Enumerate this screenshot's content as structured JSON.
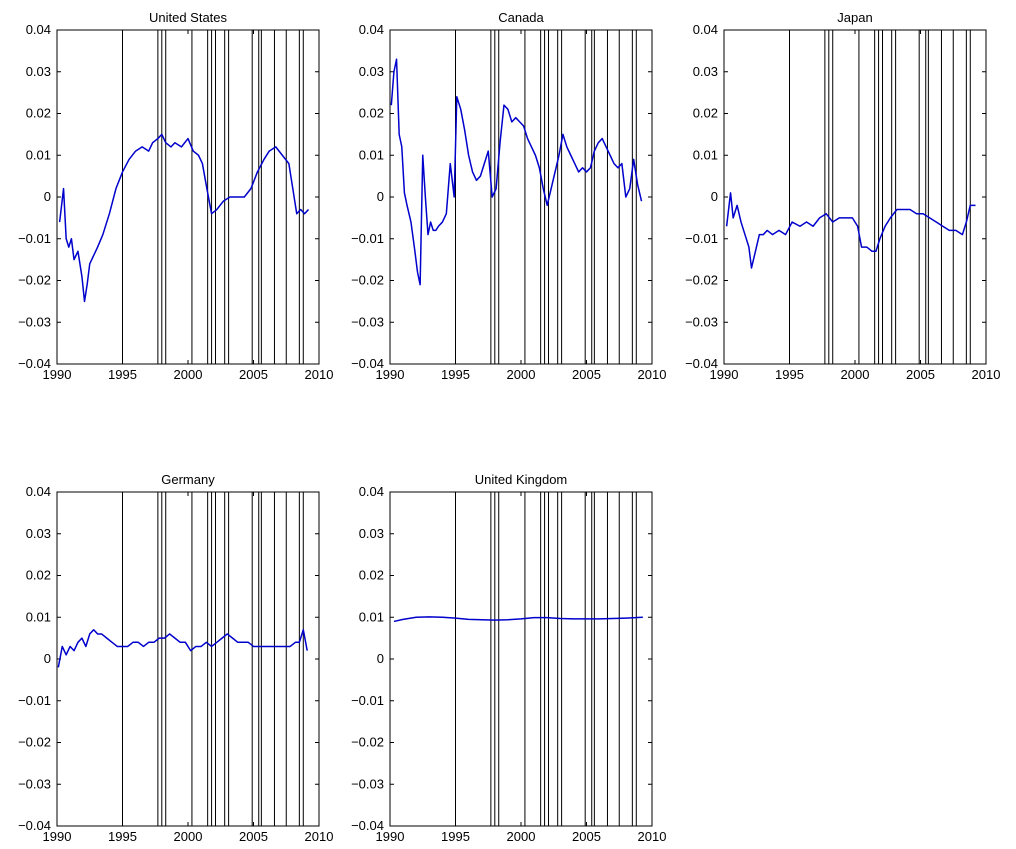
{
  "figure": {
    "event_line_color": "#000000",
    "series_color": "#0000cc",
    "axis_color": "#000000"
  },
  "chart_data": [
    {
      "type": "line",
      "title": "United States",
      "xlabel": "",
      "ylabel": "",
      "xlim": [
        1990,
        2010
      ],
      "ylim": [
        -0.04,
        0.04
      ],
      "xticks": [
        "1990",
        "1995",
        "2000",
        "2005",
        "2010"
      ],
      "yticks": [
        "−0.04",
        "−0.03",
        "−0.02",
        "−0.01",
        "0",
        "0.01",
        "0.02",
        "0.03",
        "0.04"
      ],
      "event_lines": [
        1995.0,
        1997.7,
        1998.0,
        1998.3,
        2000.3,
        2001.5,
        2001.8,
        2002.1,
        2002.8,
        2003.1,
        2004.9,
        2005.4,
        2005.6,
        2006.6,
        2007.5,
        2008.5,
        2008.8
      ],
      "series": [
        {
          "x": [
            1990.2,
            1990.5,
            1990.7,
            1990.9,
            1991.1,
            1991.3,
            1991.6,
            1991.9,
            1992.1,
            1992.3,
            1992.5,
            1992.8,
            1993.1,
            1993.5,
            1994.0,
            1994.5,
            1995.0,
            1995.5,
            1996.0,
            1996.5,
            1997.0,
            1997.3,
            1997.7,
            1998.0,
            1998.3,
            1998.7,
            1999.0,
            1999.5,
            2000.0,
            2000.4,
            2000.8,
            2001.1,
            2001.5,
            2001.8,
            2002.2,
            2002.7,
            2003.2,
            2003.8,
            2004.3,
            2004.8,
            2005.3,
            2005.8,
            2006.2,
            2006.7,
            2007.2,
            2007.7,
            2008.0,
            2008.3,
            2008.6,
            2008.9,
            2009.2
          ],
          "y": [
            -0.006,
            0.002,
            -0.01,
            -0.012,
            -0.01,
            -0.015,
            -0.013,
            -0.019,
            -0.025,
            -0.021,
            -0.016,
            -0.014,
            -0.012,
            -0.009,
            -0.004,
            0.002,
            0.006,
            0.009,
            0.011,
            0.012,
            0.011,
            0.013,
            0.014,
            0.015,
            0.013,
            0.012,
            0.013,
            0.012,
            0.014,
            0.011,
            0.01,
            0.008,
            0.001,
            -0.004,
            -0.003,
            -0.001,
            0.0,
            0.0,
            0.0,
            0.002,
            0.006,
            0.009,
            0.011,
            0.012,
            0.01,
            0.008,
            0.002,
            -0.004,
            -0.003,
            -0.004,
            -0.003
          ]
        }
      ]
    },
    {
      "type": "line",
      "title": "Canada",
      "xlabel": "",
      "ylabel": "",
      "xlim": [
        1990,
        2010
      ],
      "ylim": [
        -0.04,
        0.04
      ],
      "xticks": [
        "1990",
        "1995",
        "2000",
        "2005",
        "2010"
      ],
      "yticks": [
        "−0.04",
        "−0.03",
        "−0.02",
        "−0.01",
        "0",
        "0.01",
        "0.02",
        "0.03",
        "0.04"
      ],
      "event_lines": [
        1995.0,
        1997.7,
        1998.0,
        1998.3,
        2000.3,
        2001.5,
        2001.8,
        2002.1,
        2002.8,
        2003.1,
        2004.9,
        2005.4,
        2005.6,
        2006.6,
        2007.5,
        2008.5,
        2008.8
      ],
      "series": [
        {
          "x": [
            1990.1,
            1990.3,
            1990.5,
            1990.7,
            1990.9,
            1991.1,
            1991.3,
            1991.6,
            1991.9,
            1992.1,
            1992.3,
            1992.5,
            1992.7,
            1992.9,
            1993.1,
            1993.3,
            1993.5,
            1993.7,
            1994.0,
            1994.3,
            1994.6,
            1994.9,
            1995.1,
            1995.4,
            1995.7,
            1996.0,
            1996.3,
            1996.6,
            1996.9,
            1997.2,
            1997.5,
            1997.8,
            1998.1,
            1998.4,
            1998.7,
            1999.0,
            1999.3,
            1999.6,
            1999.9,
            2000.2,
            2000.5,
            2000.8,
            2001.1,
            2001.4,
            2001.7,
            2002.0,
            2002.3,
            2002.6,
            2002.9,
            2003.2,
            2003.5,
            2003.8,
            2004.1,
            2004.4,
            2004.7,
            2005.0,
            2005.3,
            2005.6,
            2005.9,
            2006.2,
            2006.5,
            2006.8,
            2007.1,
            2007.4,
            2007.7,
            2008.0,
            2008.3,
            2008.6,
            2008.9,
            2009.2
          ],
          "y": [
            0.022,
            0.03,
            0.033,
            0.015,
            0.012,
            0.001,
            -0.002,
            -0.006,
            -0.013,
            -0.018,
            -0.021,
            0.01,
            0.0,
            -0.009,
            -0.006,
            -0.008,
            -0.008,
            -0.007,
            -0.006,
            -0.004,
            0.008,
            0.0,
            0.024,
            0.021,
            0.016,
            0.01,
            0.006,
            0.004,
            0.005,
            0.008,
            0.011,
            0.0,
            0.002,
            0.013,
            0.022,
            0.021,
            0.018,
            0.019,
            0.018,
            0.017,
            0.014,
            0.012,
            0.01,
            0.007,
            0.002,
            -0.002,
            0.002,
            0.006,
            0.01,
            0.015,
            0.012,
            0.01,
            0.008,
            0.006,
            0.007,
            0.006,
            0.007,
            0.011,
            0.013,
            0.014,
            0.012,
            0.01,
            0.008,
            0.007,
            0.008,
            0.0,
            0.002,
            0.009,
            0.003,
            -0.001
          ]
        }
      ]
    },
    {
      "type": "line",
      "title": "Japan",
      "xlabel": "",
      "ylabel": "",
      "xlim": [
        1990,
        2010
      ],
      "ylim": [
        -0.04,
        0.04
      ],
      "xticks": [
        "1990",
        "1995",
        "2000",
        "2005",
        "2010"
      ],
      "yticks": [
        "−0.04",
        "−0.03",
        "−0.02",
        "−0.01",
        "0",
        "0.01",
        "0.02",
        "0.03",
        "0.04"
      ],
      "event_lines": [
        1995.0,
        1997.7,
        1998.0,
        1998.3,
        2000.3,
        2001.5,
        2001.8,
        2002.1,
        2002.8,
        2003.1,
        2004.9,
        2005.4,
        2005.6,
        2006.6,
        2007.5,
        2008.5,
        2008.8
      ],
      "series": [
        {
          "x": [
            1990.2,
            1990.5,
            1990.7,
            1991.0,
            1991.3,
            1991.6,
            1991.9,
            1992.1,
            1992.4,
            1992.7,
            1993.0,
            1993.3,
            1993.7,
            1994.2,
            1994.7,
            1995.2,
            1995.8,
            1996.3,
            1996.8,
            1997.3,
            1997.8,
            1998.3,
            1998.8,
            1999.3,
            1999.8,
            2000.2,
            2000.5,
            2000.9,
            2001.3,
            2001.6,
            2001.9,
            2002.3,
            2002.7,
            2003.2,
            2003.7,
            2004.2,
            2004.7,
            2005.2,
            2005.7,
            2006.2,
            2006.7,
            2007.2,
            2007.7,
            2008.2,
            2008.5,
            2008.8,
            2009.2
          ],
          "y": [
            -0.007,
            0.001,
            -0.005,
            -0.002,
            -0.006,
            -0.009,
            -0.012,
            -0.017,
            -0.013,
            -0.009,
            -0.009,
            -0.008,
            -0.009,
            -0.008,
            -0.009,
            -0.006,
            -0.007,
            -0.006,
            -0.007,
            -0.005,
            -0.004,
            -0.006,
            -0.005,
            -0.005,
            -0.005,
            -0.007,
            -0.012,
            -0.012,
            -0.013,
            -0.013,
            -0.01,
            -0.007,
            -0.005,
            -0.003,
            -0.003,
            -0.003,
            -0.004,
            -0.004,
            -0.005,
            -0.006,
            -0.007,
            -0.008,
            -0.008,
            -0.009,
            -0.006,
            -0.002,
            -0.002
          ]
        }
      ]
    },
    {
      "type": "line",
      "title": "Germany",
      "xlabel": "",
      "ylabel": "",
      "xlim": [
        1990,
        2010
      ],
      "ylim": [
        -0.04,
        0.04
      ],
      "xticks": [
        "1990",
        "1995",
        "2000",
        "2005",
        "2010"
      ],
      "yticks": [
        "−0.04",
        "−0.03",
        "−0.02",
        "−0.01",
        "0",
        "0.01",
        "0.02",
        "0.03",
        "0.04"
      ],
      "event_lines": [
        1995.0,
        1997.7,
        1998.0,
        1998.3,
        2000.3,
        2001.5,
        2001.8,
        2002.1,
        2002.8,
        2003.1,
        2004.9,
        2005.4,
        2005.6,
        2006.6,
        2007.5,
        2008.5,
        2008.8
      ],
      "series": [
        {
          "x": [
            1990.1,
            1990.4,
            1990.7,
            1991.0,
            1991.3,
            1991.6,
            1991.9,
            1992.2,
            1992.5,
            1992.8,
            1993.1,
            1993.4,
            1993.8,
            1994.2,
            1994.6,
            1995.0,
            1995.4,
            1995.8,
            1996.2,
            1996.6,
            1997.0,
            1997.4,
            1997.8,
            1998.2,
            1998.6,
            1999.0,
            1999.4,
            1999.8,
            2000.2,
            2000.6,
            2001.0,
            2001.4,
            2001.8,
            2002.2,
            2002.6,
            2003.0,
            2003.4,
            2003.8,
            2004.2,
            2004.6,
            2005.0,
            2005.4,
            2005.8,
            2006.2,
            2006.6,
            2007.0,
            2007.4,
            2007.8,
            2008.2,
            2008.5,
            2008.8,
            2009.1
          ],
          "y": [
            -0.002,
            0.003,
            0.001,
            0.003,
            0.002,
            0.004,
            0.005,
            0.003,
            0.006,
            0.007,
            0.006,
            0.006,
            0.005,
            0.004,
            0.003,
            0.003,
            0.003,
            0.004,
            0.004,
            0.003,
            0.004,
            0.004,
            0.005,
            0.005,
            0.006,
            0.005,
            0.004,
            0.004,
            0.002,
            0.003,
            0.003,
            0.004,
            0.003,
            0.004,
            0.005,
            0.006,
            0.005,
            0.004,
            0.004,
            0.004,
            0.003,
            0.003,
            0.003,
            0.003,
            0.003,
            0.003,
            0.003,
            0.003,
            0.004,
            0.004,
            0.007,
            0.002
          ]
        }
      ]
    },
    {
      "type": "line",
      "title": "United Kingdom",
      "xlabel": "",
      "ylabel": "",
      "xlim": [
        1990,
        2010
      ],
      "ylim": [
        -0.04,
        0.04
      ],
      "xticks": [
        "1990",
        "1995",
        "2000",
        "2005",
        "2010"
      ],
      "yticks": [
        "−0.04",
        "−0.03",
        "−0.02",
        "−0.01",
        "0",
        "0.01",
        "0.02",
        "0.03",
        "0.04"
      ],
      "event_lines": [
        1995.0,
        1997.7,
        1998.0,
        1998.3,
        2000.3,
        2001.5,
        2001.8,
        2002.1,
        2002.8,
        2003.1,
        2004.9,
        2005.4,
        2005.6,
        2006.6,
        2007.5,
        2008.5,
        2008.8
      ],
      "series": [
        {
          "x": [
            1990.3,
            1991.0,
            1992.0,
            1993.0,
            1994.0,
            1995.0,
            1996.0,
            1997.0,
            1998.0,
            1999.0,
            2000.0,
            2001.0,
            2002.0,
            2003.0,
            2004.0,
            2005.0,
            2006.0,
            2007.0,
            2008.0,
            2009.3
          ],
          "y": [
            0.009,
            0.0095,
            0.01,
            0.0101,
            0.01,
            0.0098,
            0.0095,
            0.0094,
            0.0093,
            0.0094,
            0.0096,
            0.0099,
            0.0099,
            0.0097,
            0.0096,
            0.0096,
            0.0096,
            0.0097,
            0.0098,
            0.01
          ]
        }
      ]
    }
  ]
}
